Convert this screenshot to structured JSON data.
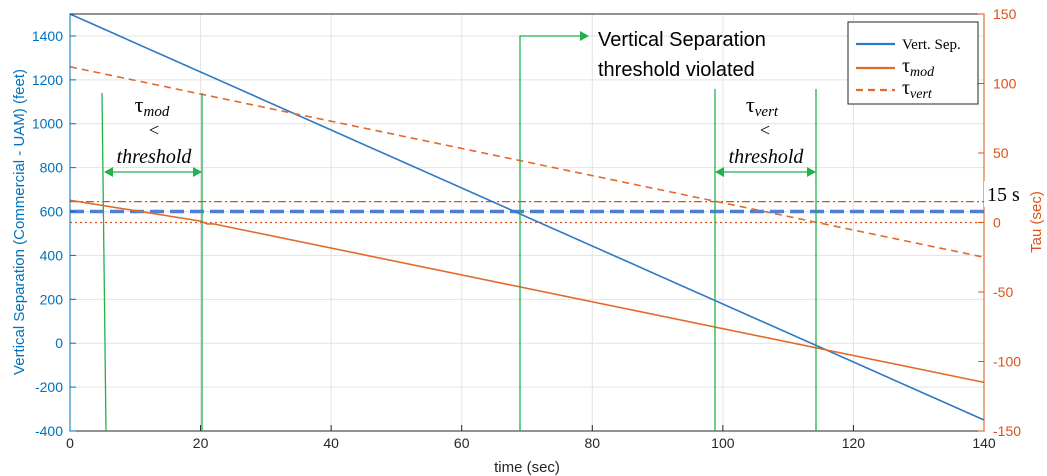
{
  "chart_data": {
    "type": "line",
    "xlabel": "time (sec)",
    "ylabel_left": "Vertical Separation (Commercial - UAM) (feet)",
    "ylabel_right": "Tau (sec)",
    "xlim": [
      0,
      140
    ],
    "ylim_left": [
      -400,
      1500
    ],
    "ylim_right": [
      -150,
      150
    ],
    "x_ticks": [
      "0",
      "20",
      "40",
      "60",
      "80",
      "100",
      "120",
      "140"
    ],
    "y_ticks_left": [
      "-400",
      "-200",
      "0",
      "200",
      "400",
      "600",
      "800",
      "1000",
      "1200",
      "1400"
    ],
    "y_ticks_right": [
      "-150",
      "-100",
      "-50",
      "0",
      "50",
      "100",
      "150"
    ],
    "grid": true,
    "legend_position": "top-right",
    "colors": {
      "left_axis": "#0072bd",
      "right_axis": "#d95319",
      "annotation": "#22b14c",
      "vert_sep": "#2e78c4",
      "tau": "#e06a2c"
    },
    "series": [
      {
        "name": "Vert. Sep.",
        "axis": "left",
        "style": "solid",
        "x": [
          0,
          140
        ],
        "y": [
          1500,
          -350
        ]
      },
      {
        "name": "mod",
        "axis": "right",
        "style": "solid",
        "x": [
          0,
          20,
          20.5,
          21,
          22,
          140
        ],
        "y": [
          16,
          1,
          0,
          -1,
          -1,
          -115
        ]
      },
      {
        "name": "vert",
        "axis": "right",
        "style": "dashed",
        "x": [
          0,
          140
        ],
        "y": [
          112,
          -25
        ]
      }
    ],
    "reference_lines": [
      {
        "axis": "left",
        "y": 600,
        "style": "thick-dashed",
        "color": "#4f7fd6"
      },
      {
        "axis": "right",
        "y": 15,
        "style": "dash-dot",
        "color": "#d95319"
      },
      {
        "axis": "right",
        "y": 0,
        "style": "dotted",
        "color": "#d95319"
      }
    ],
    "annotations": {
      "tau_mod_left": {
        "tau": "τ",
        "sub": "mod",
        "lt": "<",
        "threshold": "threshold"
      },
      "tau_vert_right": {
        "tau": "τ",
        "sub": "vert",
        "lt": "<",
        "threshold": "threshold"
      },
      "violated_line1": "Vertical Separation",
      "violated_line2": "threshold  violated",
      "fifteen": "15 s"
    },
    "legend": {
      "tau": "τ"
    }
  }
}
